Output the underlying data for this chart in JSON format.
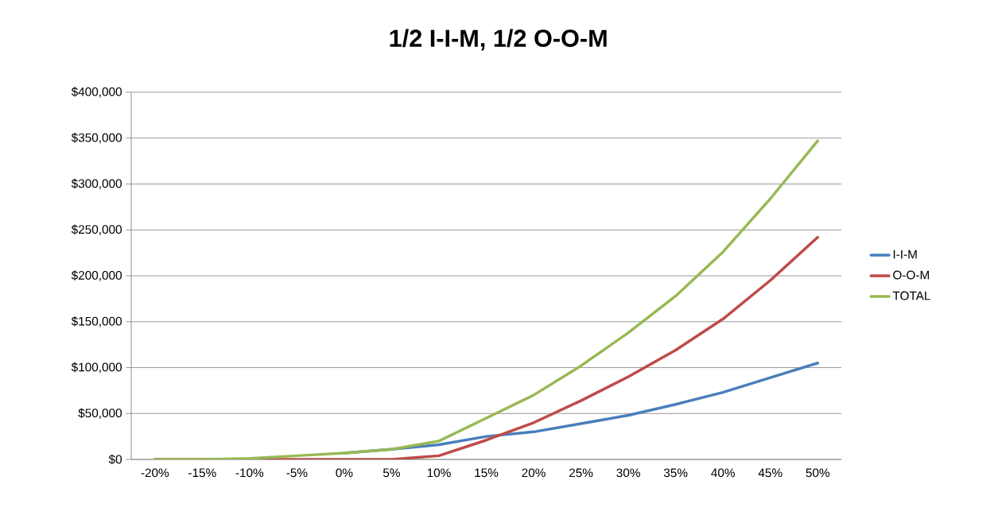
{
  "chart_data": {
    "type": "line",
    "title": "1/2 I-I-M, 1/2 O-O-M",
    "categories": [
      "-20%",
      "-15%",
      "-10%",
      "-5%",
      "0%",
      "5%",
      "10%",
      "15%",
      "20%",
      "25%",
      "30%",
      "35%",
      "40%",
      "45%",
      "50%"
    ],
    "series": [
      {
        "name": "I-I-M",
        "color": "#4a7ebb",
        "values": [
          null,
          null,
          null,
          null,
          7000,
          11000,
          16000,
          25000,
          30000,
          39000,
          48000,
          60000,
          73000,
          89000,
          105000
        ]
      },
      {
        "name": "O-O-M",
        "color": "#be4b48",
        "values": [
          0,
          0,
          0,
          0,
          0,
          0,
          4000,
          21000,
          40000,
          64000,
          90000,
          119000,
          153000,
          195000,
          242000
        ]
      },
      {
        "name": "TOTAL",
        "color": "#98b954",
        "values": [
          0,
          0,
          1000,
          4000,
          7000,
          11000,
          20000,
          45000,
          70000,
          102000,
          138000,
          178000,
          226000,
          284000,
          347000
        ]
      }
    ],
    "ylim": [
      0,
      400000
    ],
    "yticks": [
      {
        "value": 0,
        "label": "$0"
      },
      {
        "value": 50000,
        "label": "$50,000"
      },
      {
        "value": 100000,
        "label": "$100,000"
      },
      {
        "value": 150000,
        "label": "$150,000"
      },
      {
        "value": 200000,
        "label": "$200,000"
      },
      {
        "value": 250000,
        "label": "$250,000"
      },
      {
        "value": 300000,
        "label": "$300,000"
      },
      {
        "value": 350000,
        "label": "$350,000"
      },
      {
        "value": 400000,
        "label": "$400,000"
      }
    ],
    "grid": "y",
    "legend": "right",
    "marker": "none",
    "line_style": "solid"
  }
}
